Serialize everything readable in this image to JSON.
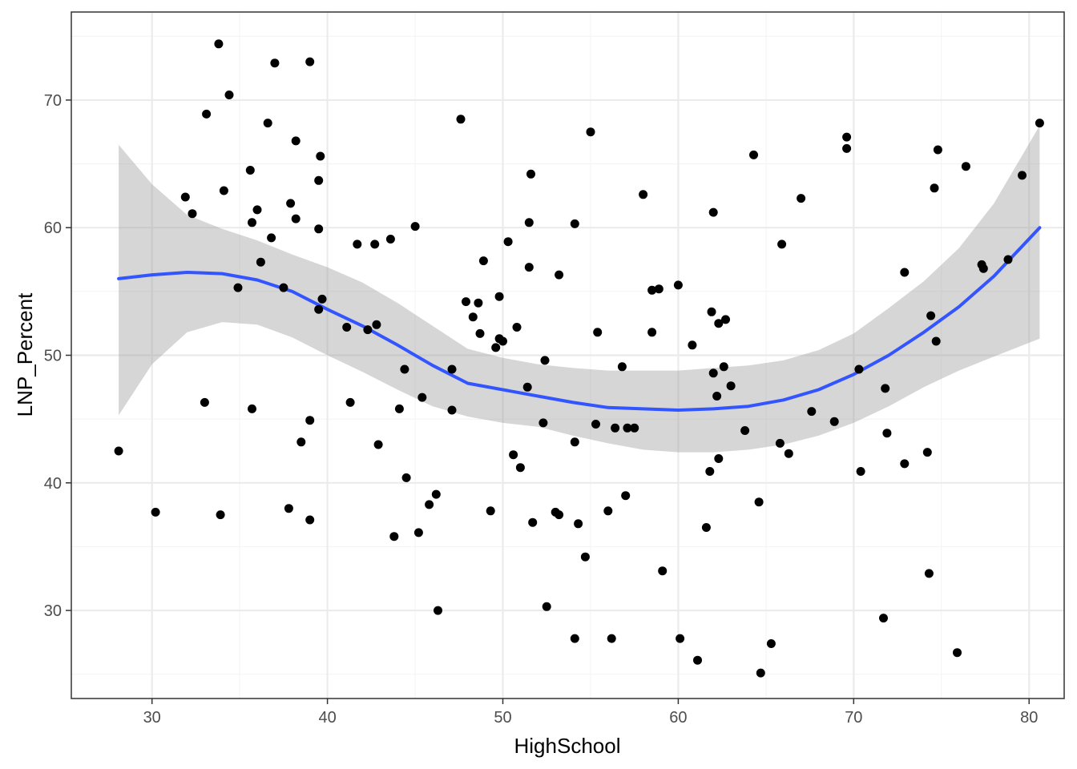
{
  "chart_data": {
    "type": "scatter",
    "title": "",
    "xlabel": "HighSchool",
    "ylabel": "LNP_Percent",
    "xlim": [
      25.4,
      82
    ],
    "ylim": [
      23.1,
      76.9
    ],
    "x_ticks": [
      30,
      40,
      50,
      60,
      70,
      80
    ],
    "y_ticks": [
      30,
      40,
      50,
      60,
      70
    ],
    "x_tick_labels": [
      "30",
      "40",
      "50",
      "60",
      "70",
      "80"
    ],
    "y_tick_labels": [
      "30",
      "40",
      "50",
      "60",
      "70"
    ],
    "grid": true,
    "theme": "bw",
    "colors": {
      "points": "#000000",
      "smooth_line": "#3355ff",
      "confidence_band": "#999999",
      "panel_border": "#333333",
      "grid_major": "#ebebeb",
      "grid_minor": "#f4f4f4"
    },
    "series": [
      {
        "type": "scatter",
        "points": [
          [
            28.1,
            42.5
          ],
          [
            30.2,
            37.7
          ],
          [
            31.9,
            62.4
          ],
          [
            32.3,
            61.1
          ],
          [
            33.0,
            46.3
          ],
          [
            33.1,
            68.9
          ],
          [
            33.8,
            74.4
          ],
          [
            33.9,
            37.5
          ],
          [
            34.1,
            62.9
          ],
          [
            34.4,
            70.4
          ],
          [
            34.9,
            55.3
          ],
          [
            35.6,
            64.5
          ],
          [
            35.7,
            45.8
          ],
          [
            35.7,
            60.4
          ],
          [
            36.0,
            61.4
          ],
          [
            36.2,
            57.3
          ],
          [
            36.6,
            68.2
          ],
          [
            36.8,
            59.2
          ],
          [
            37.0,
            72.9
          ],
          [
            37.5,
            55.3
          ],
          [
            37.8,
            38.0
          ],
          [
            37.9,
            61.9
          ],
          [
            38.2,
            60.7
          ],
          [
            38.2,
            66.8
          ],
          [
            38.5,
            43.2
          ],
          [
            39.0,
            44.9
          ],
          [
            39.0,
            73.0
          ],
          [
            39.0,
            37.1
          ],
          [
            39.5,
            53.6
          ],
          [
            39.5,
            59.9
          ],
          [
            39.5,
            63.7
          ],
          [
            39.6,
            65.6
          ],
          [
            39.7,
            54.4
          ],
          [
            41.1,
            52.2
          ],
          [
            41.3,
            46.3
          ],
          [
            41.7,
            58.7
          ],
          [
            42.3,
            52.0
          ],
          [
            42.7,
            58.7
          ],
          [
            42.8,
            52.4
          ],
          [
            42.9,
            43.0
          ],
          [
            43.6,
            59.1
          ],
          [
            43.8,
            35.8
          ],
          [
            44.1,
            45.8
          ],
          [
            44.4,
            48.9
          ],
          [
            44.5,
            40.4
          ],
          [
            45.0,
            60.1
          ],
          [
            45.2,
            36.1
          ],
          [
            45.4,
            46.7
          ],
          [
            45.8,
            38.3
          ],
          [
            46.2,
            39.1
          ],
          [
            46.3,
            30.0
          ],
          [
            47.1,
            45.7
          ],
          [
            47.1,
            48.9
          ],
          [
            47.6,
            68.5
          ],
          [
            47.9,
            54.2
          ],
          [
            48.3,
            53.0
          ],
          [
            48.6,
            54.1
          ],
          [
            48.7,
            51.7
          ],
          [
            48.9,
            57.4
          ],
          [
            49.3,
            37.8
          ],
          [
            49.6,
            50.6
          ],
          [
            49.8,
            51.3
          ],
          [
            49.8,
            54.6
          ],
          [
            50.0,
            51.1
          ],
          [
            50.3,
            58.9
          ],
          [
            50.6,
            42.2
          ],
          [
            50.8,
            52.2
          ],
          [
            51.0,
            41.2
          ],
          [
            51.4,
            47.5
          ],
          [
            51.5,
            56.9
          ],
          [
            51.5,
            60.4
          ],
          [
            51.6,
            64.2
          ],
          [
            51.7,
            36.9
          ],
          [
            52.3,
            44.7
          ],
          [
            52.4,
            49.6
          ],
          [
            52.5,
            30.3
          ],
          [
            53.0,
            37.7
          ],
          [
            53.2,
            37.5
          ],
          [
            53.2,
            56.3
          ],
          [
            54.1,
            27.8
          ],
          [
            54.1,
            43.2
          ],
          [
            54.1,
            60.3
          ],
          [
            54.3,
            36.8
          ],
          [
            54.7,
            34.2
          ],
          [
            55.0,
            67.5
          ],
          [
            55.3,
            44.6
          ],
          [
            55.4,
            51.8
          ],
          [
            56.0,
            37.8
          ],
          [
            56.2,
            27.8
          ],
          [
            56.4,
            44.3
          ],
          [
            56.8,
            49.1
          ],
          [
            57.0,
            39.0
          ],
          [
            57.1,
            44.3
          ],
          [
            57.5,
            44.3
          ],
          [
            58.0,
            62.6
          ],
          [
            58.5,
            55.1
          ],
          [
            58.5,
            51.8
          ],
          [
            58.9,
            55.2
          ],
          [
            59.1,
            33.1
          ],
          [
            60.0,
            55.5
          ],
          [
            60.1,
            27.8
          ],
          [
            60.8,
            50.8
          ],
          [
            61.1,
            26.1
          ],
          [
            61.6,
            36.5
          ],
          [
            61.8,
            40.9
          ],
          [
            61.9,
            53.4
          ],
          [
            62.0,
            61.2
          ],
          [
            62.0,
            48.6
          ],
          [
            62.2,
            46.8
          ],
          [
            62.3,
            41.9
          ],
          [
            62.3,
            52.5
          ],
          [
            62.6,
            49.1
          ],
          [
            62.7,
            52.8
          ],
          [
            63.0,
            47.6
          ],
          [
            63.8,
            44.1
          ],
          [
            64.3,
            65.7
          ],
          [
            64.6,
            38.5
          ],
          [
            64.7,
            25.1
          ],
          [
            65.3,
            27.4
          ],
          [
            65.8,
            43.1
          ],
          [
            65.9,
            58.7
          ],
          [
            66.3,
            42.3
          ],
          [
            67.0,
            62.3
          ],
          [
            67.6,
            45.6
          ],
          [
            68.9,
            44.8
          ],
          [
            69.6,
            67.1
          ],
          [
            69.6,
            66.2
          ],
          [
            70.3,
            48.9
          ],
          [
            70.4,
            40.9
          ],
          [
            71.7,
            29.4
          ],
          [
            71.8,
            47.4
          ],
          [
            71.9,
            43.9
          ],
          [
            72.9,
            56.5
          ],
          [
            72.9,
            41.5
          ],
          [
            74.2,
            42.4
          ],
          [
            74.3,
            32.9
          ],
          [
            74.4,
            53.1
          ],
          [
            74.6,
            63.1
          ],
          [
            74.7,
            51.1
          ],
          [
            74.8,
            66.1
          ],
          [
            75.9,
            26.7
          ],
          [
            76.4,
            64.8
          ],
          [
            77.3,
            57.1
          ],
          [
            77.4,
            56.8
          ],
          [
            78.8,
            57.5
          ],
          [
            79.6,
            64.1
          ],
          [
            80.6,
            68.2
          ]
        ]
      },
      {
        "type": "smooth",
        "method": "loess",
        "x": [
          28.1,
          30,
          32,
          34,
          36,
          38,
          40,
          42,
          44,
          46,
          48,
          50,
          52,
          54,
          56,
          58,
          60,
          62,
          64,
          66,
          68,
          70,
          72,
          74,
          76,
          78,
          80.6
        ],
        "y": [
          56.0,
          56.3,
          56.5,
          56.4,
          55.9,
          55.0,
          53.6,
          52.3,
          50.8,
          49.2,
          47.8,
          47.3,
          46.8,
          46.3,
          45.9,
          45.8,
          45.7,
          45.8,
          46.0,
          46.5,
          47.3,
          48.5,
          50.0,
          51.8,
          53.8,
          56.2,
          60.0
        ],
        "ymin": [
          45.3,
          49.3,
          51.8,
          52.6,
          52.4,
          51.4,
          50.0,
          48.7,
          47.3,
          46.0,
          45.2,
          44.7,
          44.4,
          43.7,
          43.1,
          42.6,
          42.4,
          42.4,
          42.6,
          43.0,
          43.7,
          44.7,
          46.0,
          47.5,
          48.8,
          49.9,
          51.3
        ],
        "ymax": [
          66.5,
          63.4,
          61.0,
          59.9,
          59.0,
          57.9,
          56.9,
          55.7,
          54.1,
          52.3,
          50.5,
          49.8,
          49.3,
          49.0,
          48.8,
          48.8,
          48.8,
          49.0,
          49.2,
          49.6,
          50.4,
          51.7,
          53.7,
          55.8,
          58.4,
          61.9,
          68.0
        ]
      }
    ]
  }
}
